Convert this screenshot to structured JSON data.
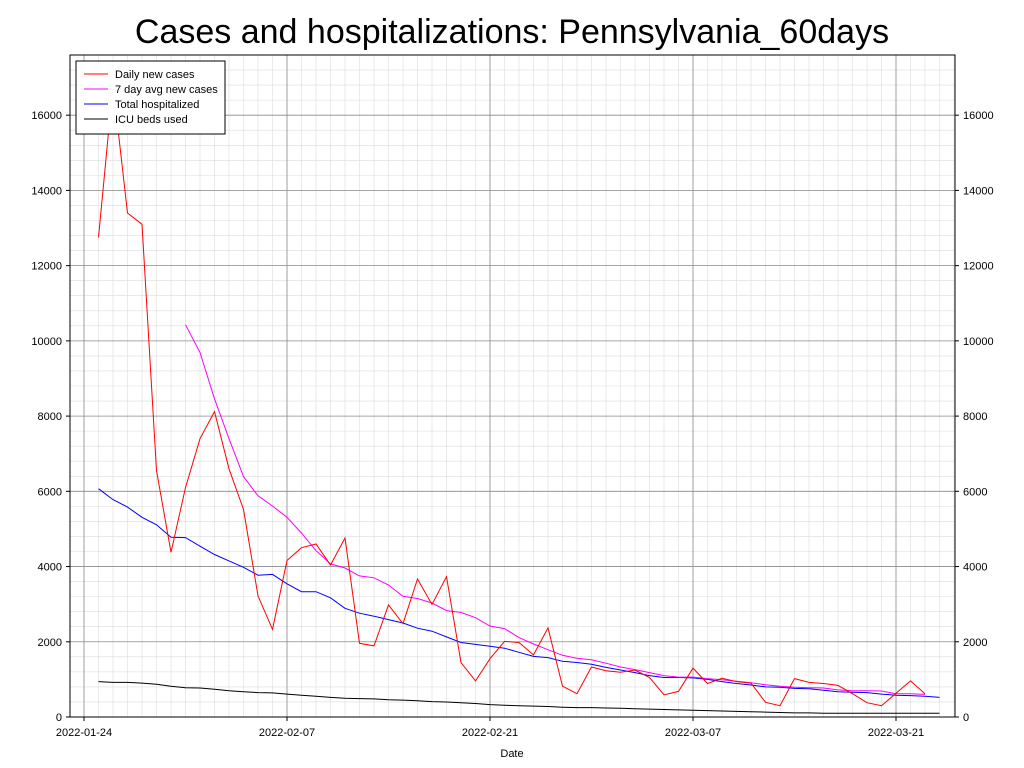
{
  "chart_data": {
    "type": "line",
    "title": "Cases and hospitalizations: Pennsylvania_60days",
    "xlabel": "Date",
    "ylabel": "",
    "ylim": [
      0,
      17600
    ],
    "yticks": [
      0,
      2000,
      4000,
      6000,
      8000,
      10000,
      12000,
      14000,
      16000
    ],
    "xticks": [
      {
        "day": 0,
        "label": "2022-01-24"
      },
      {
        "day": 14,
        "label": "2022-02-07"
      },
      {
        "day": 28,
        "label": "2022-02-21"
      },
      {
        "day": 42,
        "label": "2022-03-07"
      },
      {
        "day": 56,
        "label": "2022-03-21"
      }
    ],
    "xlim_days": [
      0,
      61
    ],
    "grid": true,
    "legend_position": "top-left",
    "series": [
      {
        "name": "Daily new cases",
        "color": "#ff0000",
        "x": [
          1,
          2,
          3,
          4,
          5,
          6,
          7,
          8,
          9,
          10,
          11,
          12,
          13,
          14,
          15,
          16,
          17,
          18,
          19,
          20,
          21,
          22,
          23,
          24,
          25,
          26,
          27,
          28,
          29,
          30,
          31,
          32,
          33,
          34,
          35,
          36,
          37,
          38,
          39,
          40,
          41,
          42,
          43,
          44,
          45,
          46,
          47,
          48,
          49,
          50,
          51,
          52,
          53,
          54,
          55,
          56,
          57,
          58
        ],
        "values": [
          12750,
          16800,
          13400,
          13100,
          6550,
          4380,
          6100,
          7400,
          8120,
          6600,
          5520,
          3220,
          2330,
          4160,
          4500,
          4600,
          4040,
          4760,
          1960,
          1890,
          2980,
          2480,
          3670,
          2990,
          3730,
          1450,
          960,
          1550,
          2010,
          1980,
          1650,
          2370,
          820,
          620,
          1330,
          1230,
          1190,
          1250,
          1050,
          590,
          680,
          1300,
          890,
          1030,
          940,
          900,
          390,
          300,
          1020,
          920,
          890,
          840,
          620,
          380,
          300,
          630,
          960,
          620
        ]
      },
      {
        "name": "7 day avg new cases",
        "color": "#ff00ff",
        "x": [
          7,
          8,
          9,
          10,
          11,
          12,
          13,
          14,
          15,
          16,
          17,
          18,
          19,
          20,
          21,
          22,
          23,
          24,
          25,
          26,
          27,
          28,
          29,
          30,
          31,
          32,
          33,
          34,
          35,
          36,
          37,
          38,
          39,
          40,
          41,
          42,
          43,
          44,
          45,
          46,
          47,
          48,
          49,
          50,
          51,
          52,
          53,
          54,
          55,
          56,
          57,
          58
        ],
        "values": [
          10430,
          9690,
          8460,
          7400,
          6390,
          5880,
          5610,
          5310,
          4890,
          4420,
          4070,
          3960,
          3750,
          3700,
          3510,
          3210,
          3150,
          3030,
          2830,
          2780,
          2640,
          2420,
          2350,
          2110,
          1940,
          1790,
          1640,
          1560,
          1520,
          1430,
          1330,
          1260,
          1180,
          1100,
          1060,
          1060,
          1020,
          990,
          950,
          910,
          860,
          820,
          790,
          780,
          770,
          720,
          700,
          700,
          690,
          620,
          620,
          600
        ]
      },
      {
        "name": "Total hospitalized",
        "color": "#0000ff",
        "x": [
          1,
          2,
          3,
          4,
          5,
          6,
          7,
          8,
          9,
          10,
          11,
          12,
          13,
          14,
          15,
          16,
          17,
          18,
          19,
          20,
          21,
          22,
          23,
          24,
          25,
          26,
          27,
          28,
          29,
          30,
          31,
          32,
          33,
          34,
          35,
          36,
          37,
          38,
          39,
          40,
          41,
          42,
          43,
          44,
          45,
          46,
          47,
          48,
          49,
          50,
          51,
          52,
          53,
          54,
          55,
          56,
          57,
          58,
          59
        ],
        "values": [
          6070,
          5780,
          5580,
          5310,
          5110,
          4780,
          4770,
          4540,
          4320,
          4150,
          3980,
          3770,
          3790,
          3540,
          3330,
          3330,
          3170,
          2890,
          2760,
          2680,
          2590,
          2500,
          2360,
          2280,
          2130,
          1980,
          1930,
          1880,
          1830,
          1720,
          1610,
          1580,
          1480,
          1450,
          1400,
          1320,
          1250,
          1180,
          1100,
          1050,
          1050,
          1040,
          1000,
          940,
          890,
          850,
          800,
          790,
          760,
          750,
          710,
          670,
          660,
          650,
          610,
          580,
          570,
          550,
          520
        ]
      },
      {
        "name": "ICU beds used",
        "color": "#000000",
        "x": [
          1,
          2,
          3,
          4,
          5,
          6,
          7,
          8,
          9,
          10,
          11,
          12,
          13,
          14,
          15,
          16,
          17,
          18,
          19,
          20,
          21,
          22,
          23,
          24,
          25,
          26,
          27,
          28,
          29,
          30,
          31,
          32,
          33,
          34,
          35,
          36,
          37,
          38,
          39,
          40,
          41,
          42,
          43,
          44,
          45,
          46,
          47,
          48,
          49,
          50,
          51,
          52,
          53,
          54,
          55,
          56,
          57,
          58,
          59
        ],
        "values": [
          940,
          920,
          920,
          900,
          870,
          820,
          780,
          770,
          740,
          700,
          670,
          650,
          640,
          610,
          580,
          550,
          520,
          500,
          490,
          480,
          460,
          450,
          430,
          410,
          400,
          380,
          360,
          330,
          310,
          300,
          290,
          280,
          260,
          250,
          250,
          240,
          230,
          220,
          210,
          200,
          190,
          180,
          170,
          160,
          150,
          140,
          130,
          120,
          110,
          110,
          100,
          100,
          100,
          100,
          100,
          100,
          100,
          100,
          100
        ]
      }
    ]
  }
}
